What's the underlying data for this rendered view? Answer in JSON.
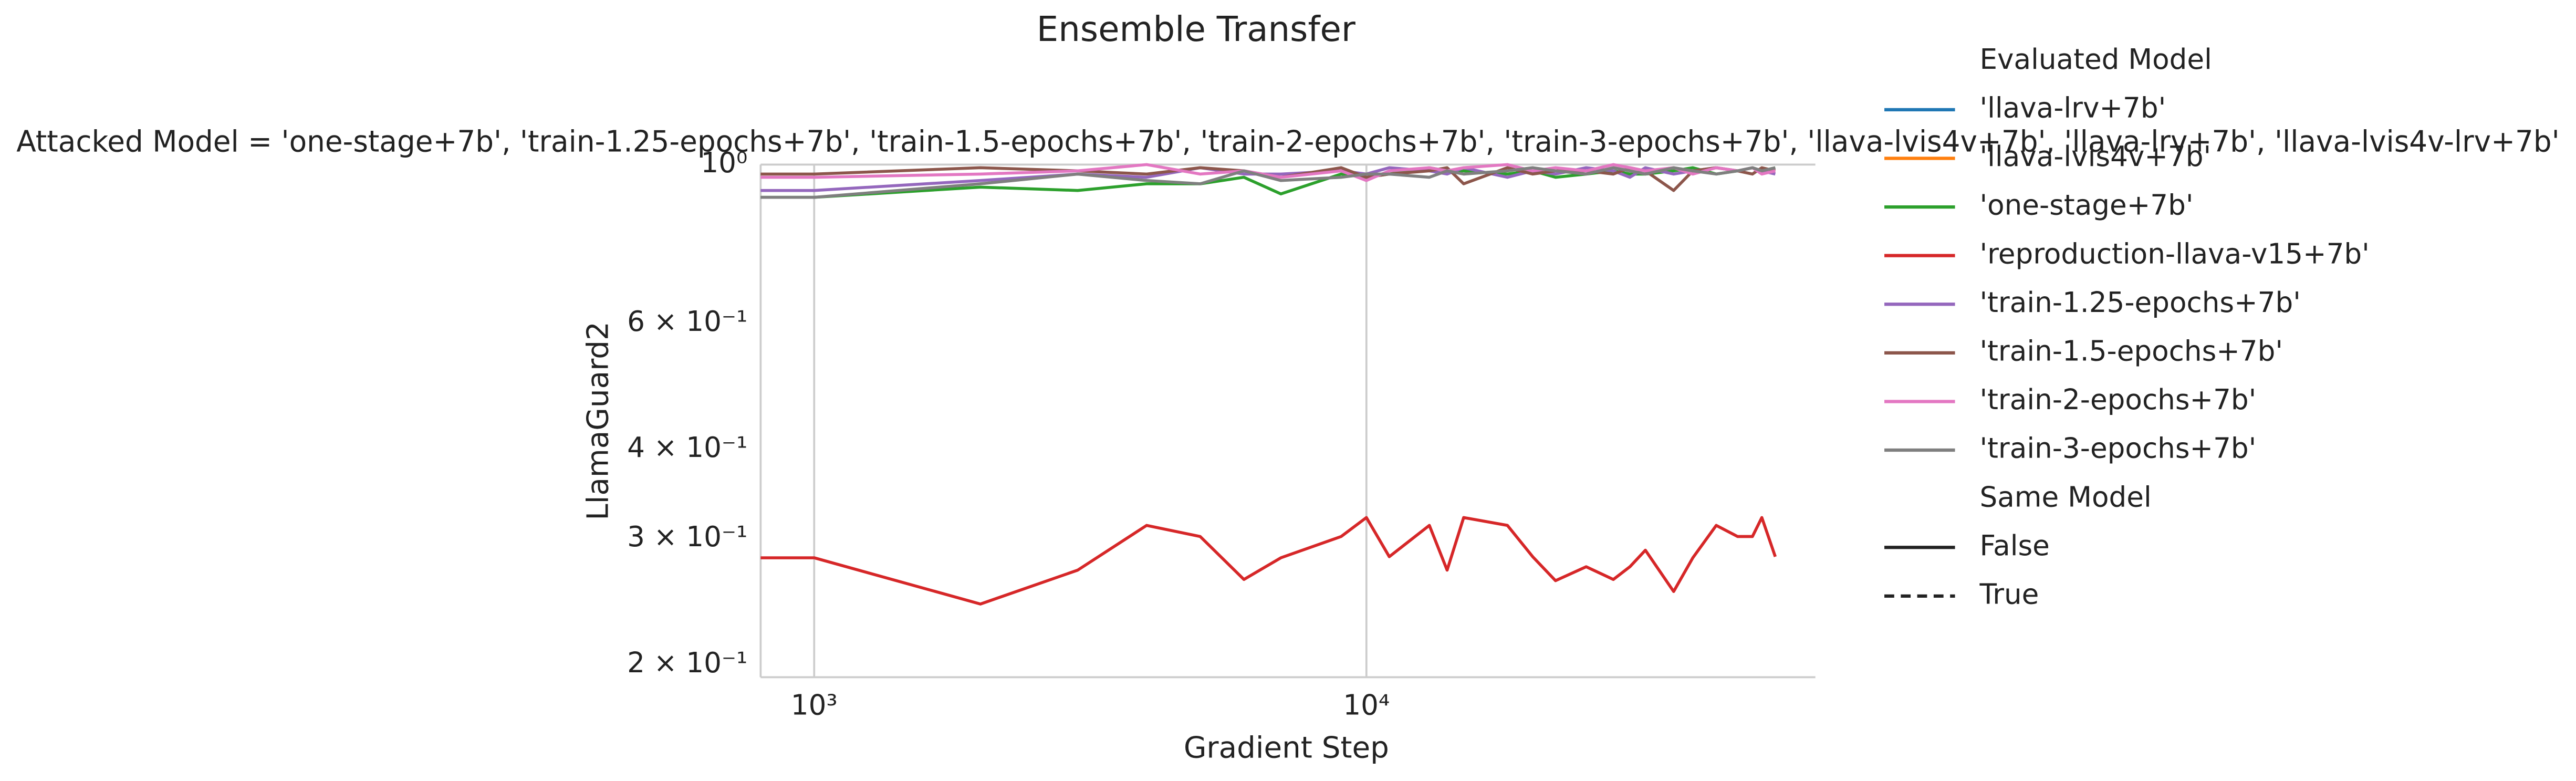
{
  "chart_data": {
    "type": "line",
    "title": "Ensemble Transfer",
    "subtitle": "Attacked Model = 'one-stage+7b', 'train-1.25-epochs+7b', 'train-1.5-epochs+7b', 'train-2-epochs+7b', 'train-3-epochs+7b', 'llava-lvis4v+7b', 'llava-lrv+7b', 'llava-lvis4v-lrv+7b'",
    "x_label": "Gradient Step",
    "y_label": "LlamaGuard2",
    "x_scale": "log",
    "y_scale": "log",
    "grid": true,
    "xlim": [
      800,
      65000
    ],
    "ylim": [
      0.192,
      1.0
    ],
    "xticks": [
      {
        "value": 1000,
        "label": "10³"
      },
      {
        "value": 10000,
        "label": "10⁴"
      }
    ],
    "yticks": [
      {
        "value": 0.2,
        "label": "2 × 10⁻¹"
      },
      {
        "value": 0.3,
        "label": "3 × 10⁻¹"
      },
      {
        "value": 0.4,
        "label": "4 × 10⁻¹"
      },
      {
        "value": 0.6,
        "label": "6 × 10⁻¹"
      },
      {
        "value": 1.0,
        "label": "10⁰"
      }
    ],
    "legend_title": "Evaluated Model",
    "legend_position": "outside right",
    "x": [
      800,
      1000,
      2000,
      3000,
      4000,
      5000,
      6000,
      7000,
      9000,
      10000,
      11000,
      13000,
      14000,
      15000,
      18000,
      20000,
      22000,
      25000,
      28000,
      30000,
      32000,
      36000,
      39000,
      43000,
      47000,
      50000,
      52000,
      55000
    ],
    "series": [
      {
        "name": "'llava-lrv+7b'",
        "color": "#1f77b4",
        "values": [
          null,
          null,
          null,
          null,
          null,
          null,
          null,
          null,
          null,
          null,
          null,
          null,
          null,
          null,
          null,
          null,
          null,
          null,
          null,
          null,
          null,
          null,
          null,
          null,
          null,
          null,
          null,
          null
        ]
      },
      {
        "name": "'llava-lvis4v+7b'",
        "color": "#ff7f0e",
        "values": [
          null,
          null,
          null,
          null,
          null,
          null,
          null,
          null,
          null,
          null,
          null,
          null,
          null,
          null,
          null,
          null,
          null,
          null,
          null,
          null,
          null,
          null,
          null,
          null,
          null,
          null,
          null,
          null
        ]
      },
      {
        "name": "'one-stage+7b'",
        "color": "#2ca02c",
        "values": [
          0.9,
          0.9,
          0.93,
          0.92,
          0.94,
          0.94,
          0.96,
          0.91,
          0.97,
          0.96,
          0.97,
          0.99,
          0.98,
          0.98,
          0.97,
          0.98,
          0.96,
          0.97,
          0.98,
          0.97,
          0.97,
          0.98,
          0.99,
          0.97,
          0.98,
          0.99,
          0.98,
          0.99
        ]
      },
      {
        "name": "'reproduction-llava-v15+7b'",
        "color": "#d62728",
        "values": [
          0.282,
          0.282,
          0.243,
          0.271,
          0.313,
          0.302,
          0.263,
          0.282,
          0.302,
          0.321,
          0.283,
          0.313,
          0.271,
          0.321,
          0.313,
          0.283,
          0.262,
          0.274,
          0.263,
          0.274,
          0.289,
          0.253,
          0.282,
          0.313,
          0.302,
          0.302,
          0.321,
          0.283
        ]
      },
      {
        "name": "'train-1.25-epochs+7b'",
        "color": "#9467bd",
        "values": [
          0.92,
          0.92,
          0.95,
          0.97,
          0.96,
          0.99,
          0.97,
          0.97,
          0.98,
          0.97,
          0.99,
          0.98,
          0.97,
          0.99,
          0.96,
          0.98,
          0.97,
          0.99,
          0.98,
          0.96,
          0.99,
          0.97,
          0.98,
          0.99,
          0.98,
          0.99,
          0.98,
          0.97
        ]
      },
      {
        "name": "'train-1.5-epochs+7b'",
        "color": "#8c564b",
        "values": [
          0.97,
          0.97,
          0.99,
          0.98,
          0.97,
          0.99,
          0.98,
          0.96,
          0.99,
          0.96,
          0.97,
          0.98,
          0.99,
          0.94,
          0.99,
          0.97,
          0.98,
          0.98,
          0.97,
          0.99,
          0.98,
          0.92,
          0.98,
          0.99,
          0.98,
          0.97,
          0.99,
          0.98
        ]
      },
      {
        "name": "'train-2-epochs+7b'",
        "color": "#e377c2",
        "values": [
          0.96,
          0.96,
          0.97,
          0.98,
          1.0,
          0.97,
          0.98,
          0.96,
          0.98,
          0.95,
          0.98,
          0.99,
          0.98,
          0.99,
          1.0,
          0.98,
          0.99,
          0.98,
          1.0,
          0.99,
          0.98,
          0.99,
          0.97,
          0.99,
          0.98,
          0.99,
          0.97,
          0.98
        ]
      },
      {
        "name": "'train-3-epochs+7b'",
        "color": "#7f7f7f",
        "values": [
          0.9,
          0.9,
          0.94,
          0.97,
          0.95,
          0.94,
          0.98,
          0.95,
          0.96,
          0.97,
          0.97,
          0.96,
          0.98,
          0.97,
          0.98,
          0.99,
          0.98,
          0.97,
          0.99,
          0.98,
          0.97,
          0.99,
          0.98,
          0.97,
          0.98,
          0.99,
          0.98,
          0.99
        ]
      }
    ],
    "style_legend": {
      "title": "Same Model",
      "entries": [
        {
          "label": "False",
          "dash": "solid"
        },
        {
          "label": "True",
          "dash": "dashed"
        }
      ]
    }
  }
}
